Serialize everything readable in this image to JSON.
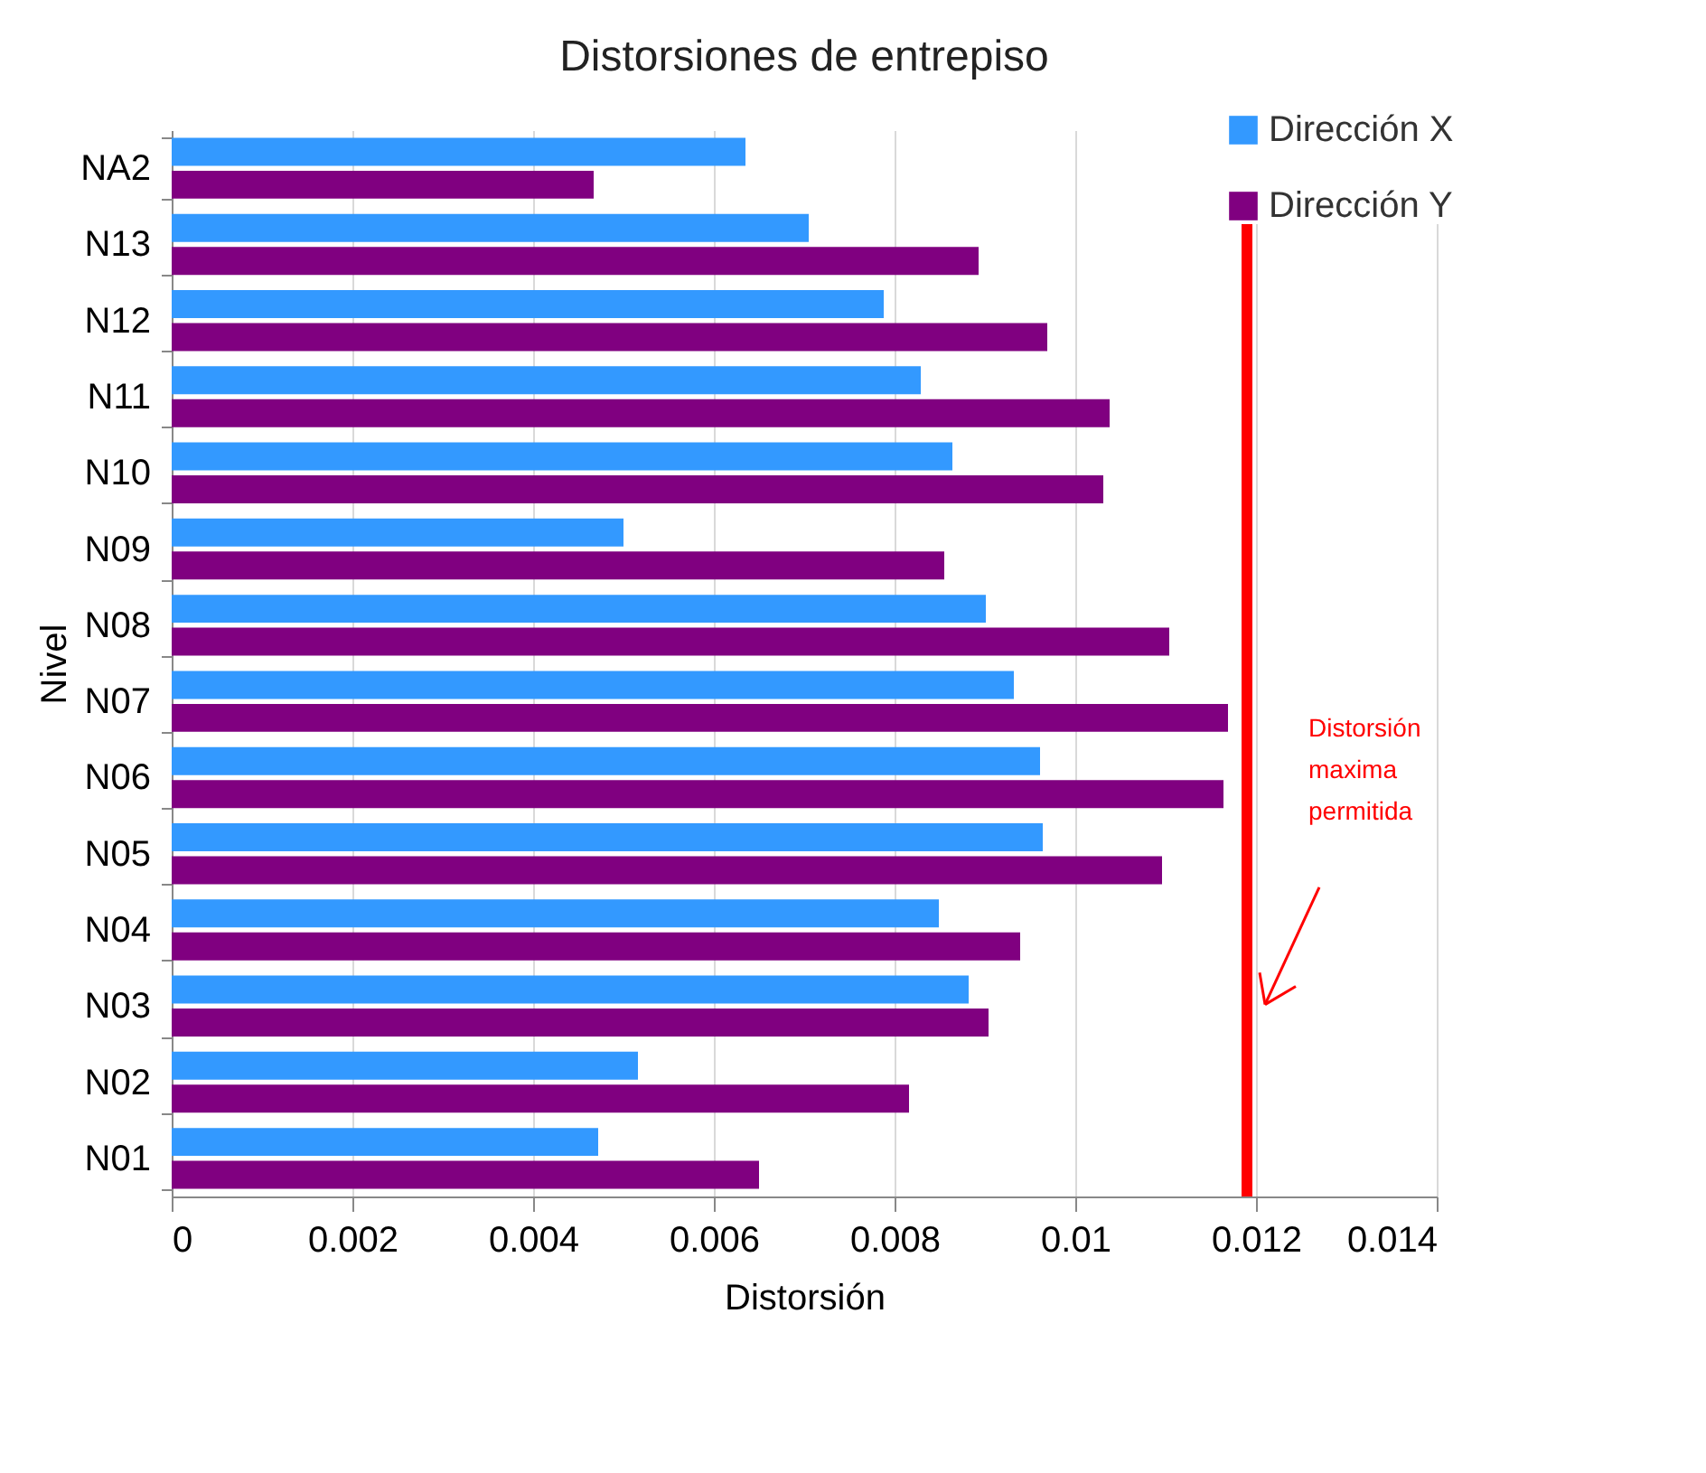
{
  "chart_data": {
    "type": "bar",
    "orientation": "horizontal",
    "title": "Distorsiones de entrepiso",
    "xlabel": "Distorsión",
    "ylabel": "Nivel",
    "categories": [
      "NA2",
      "N13",
      "N12",
      "N11",
      "N10",
      "N09",
      "N08",
      "N07",
      "N06",
      "N05",
      "N04",
      "N03",
      "N02",
      "N01"
    ],
    "series": [
      {
        "name": "Dirección X",
        "color": "#3399ff",
        "values": [
          0.00635,
          0.00705,
          0.00788,
          0.00829,
          0.00864,
          0.005,
          0.00901,
          0.00932,
          0.00961,
          0.00964,
          0.00849,
          0.00882,
          0.00516,
          0.00472
        ]
      },
      {
        "name": "Dirección Y",
        "color": "#800080",
        "values": [
          0.00467,
          0.00893,
          0.00969,
          0.01038,
          0.01031,
          0.00855,
          0.01104,
          0.01169,
          0.01164,
          0.01096,
          0.00939,
          0.00904,
          0.00816,
          0.0065
        ]
      }
    ],
    "xlim": [
      0,
      0.014
    ],
    "xticks": [
      0,
      0.002,
      0.004,
      0.006,
      0.008,
      0.01,
      0.012,
      0.014
    ],
    "grid": "x",
    "legend": "top right",
    "ref_lines": [
      {
        "axis": "x",
        "value": 0.0119,
        "label": "Distorsión maxima permitida",
        "color": "#ff0000"
      }
    ]
  }
}
